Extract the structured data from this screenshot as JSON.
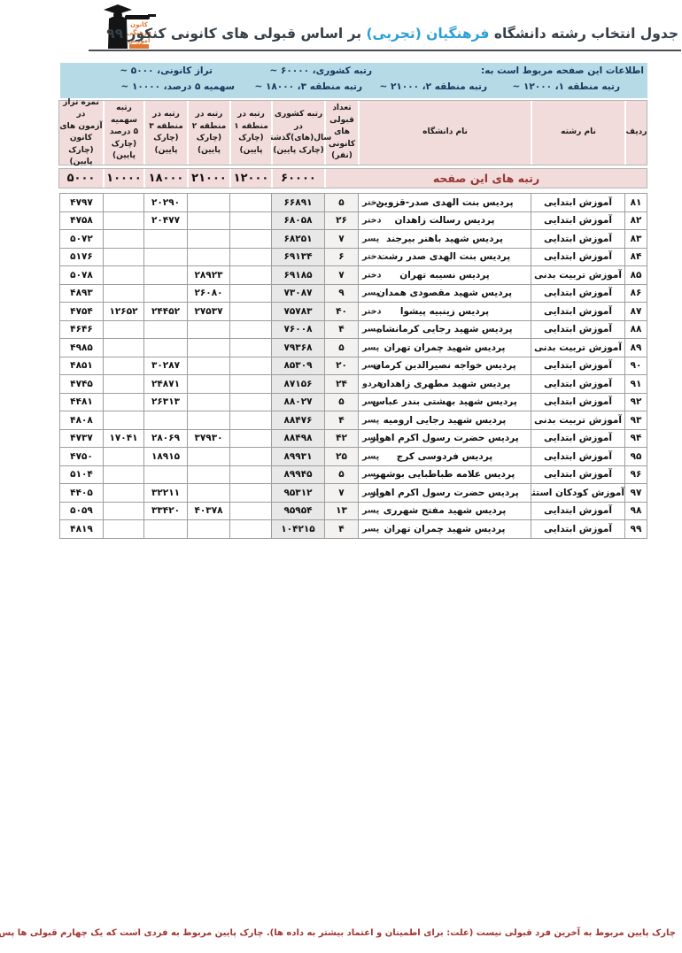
{
  "colors": {
    "highlight_blue": "#2b9fd6",
    "info_box_bg": "#b6dbe7",
    "info_text_navy": "#17365d",
    "header_pink": "#f2dcdb",
    "page_ranks_label_red": "#963634",
    "footnote_red": "#a03735",
    "logo_orange": "#e2762f",
    "national_rank_col_gray": "#e8e8e8"
  },
  "header": {
    "title_pre": "جدول انتخاب رشته دانشگاه ",
    "title_highlight": "فرهنگیان (تجربی)",
    "title_post": " بر اساس قبولی های کانونی کنکور ۹۹",
    "logo_lines": [
      "کانون",
      "فرهنگی",
      "آموزش"
    ]
  },
  "infobox": {
    "row1": [
      "اطلاعات این صفحه مربوط است به:",
      "رتبه کشوری، ۶۰۰۰۰ ~",
      "تراز کانونی، ۵۰۰۰ ~"
    ],
    "row2": [
      "رتبه منطقه ۱، ۱۲۰۰۰ ~",
      "رتبه منطقه ۲، ۲۱۰۰۰ ~",
      "رتبه منطقه ۳، ۱۸۰۰۰ ~",
      "سهمیه ۵ درصد، ۱۰۰۰۰ ~"
    ]
  },
  "table": {
    "columns": [
      {
        "id": "radif",
        "label": "ردیف"
      },
      {
        "id": "reshte",
        "label": "نام رشته"
      },
      {
        "id": "daneshgah",
        "label": "نام دانشگاه"
      },
      {
        "id": "tedad",
        "label": "تعداد قبولی\nهای کانونی\n(نفر)"
      },
      {
        "id": "keshvari",
        "label": "رتبه کشوری\nدر سال(های)گذشته\n(چارک پایین)"
      },
      {
        "id": "mantaghe1",
        "label": "رتبه در\nمنطقه ۱\n(چارک پایین)"
      },
      {
        "id": "mantaghe2",
        "label": "رتبه در\nمنطقه ۲\n(چارک پایین)"
      },
      {
        "id": "mantaghe3",
        "label": "رتبه در\nمنطقه ۳\n(چارک پایین)"
      },
      {
        "id": "sahmie",
        "label": "رتبه سهمیه\n۵ درصد\n(چارک پایین)"
      },
      {
        "id": "taraz",
        "label": "نمره تراز در\nآزمون های\nکانون\n(چارک پایین)"
      }
    ],
    "page_ranks_label": "رتبه های این صفحه",
    "page_ranks": {
      "keshvari": "۶۰۰۰۰",
      "mantaghe1": "۱۲۰۰۰",
      "mantaghe2": "۲۱۰۰۰",
      "mantaghe3": "۱۸۰۰۰",
      "sahmie": "۱۰۰۰۰",
      "taraz": "۵۰۰۰"
    },
    "rows": [
      {
        "radif": "۸۱",
        "reshte": "آموزش ابتدایی",
        "daneshgah": "پردیس بنت الهدی صدر-قزوین",
        "jens": "دختر",
        "tedad": "۵",
        "keshvari": "۶۶۸۹۱",
        "mantaghe1": "",
        "mantaghe2": "",
        "mantaghe3": "۲۰۲۹۰",
        "sahmie": "",
        "taraz": "۴۷۹۷"
      },
      {
        "radif": "۸۲",
        "reshte": "آموزش ابتدایی",
        "daneshgah": "پردیس رسالت زاهدان",
        "jens": "دختر",
        "tedad": "۲۶",
        "keshvari": "۶۸۰۵۸",
        "mantaghe1": "",
        "mantaghe2": "",
        "mantaghe3": "۲۰۴۷۷",
        "sahmie": "",
        "taraz": "۴۷۵۸"
      },
      {
        "radif": "۸۳",
        "reshte": "آموزش ابتدایی",
        "daneshgah": "پردیس شهید باهنر بیرجند",
        "jens": "پسر",
        "tedad": "۷",
        "keshvari": "۶۸۲۵۱",
        "mantaghe1": "",
        "mantaghe2": "",
        "mantaghe3": "",
        "sahmie": "",
        "taraz": "۵۰۷۲"
      },
      {
        "radif": "۸۴",
        "reshte": "آموزش ابتدایی",
        "daneshgah": "پردیس بنت الهدی صدر رشت",
        "jens": "دختر",
        "tedad": "۶",
        "keshvari": "۶۹۱۳۴",
        "mantaghe1": "",
        "mantaghe2": "",
        "mantaghe3": "",
        "sahmie": "",
        "taraz": "۵۱۷۶"
      },
      {
        "radif": "۸۵",
        "reshte": "آموزش تربیت بدنی",
        "daneshgah": "پردیس نسیبه تهران",
        "jens": "دختر",
        "tedad": "۷",
        "keshvari": "۶۹۱۸۵",
        "mantaghe1": "",
        "mantaghe2": "۲۸۹۲۳",
        "mantaghe3": "",
        "sahmie": "",
        "taraz": "۵۰۷۸"
      },
      {
        "radif": "۸۶",
        "reshte": "آموزش ابتدایی",
        "daneshgah": "پردیس شهید مقصودی همدان",
        "jens": "پسر",
        "tedad": "۹",
        "keshvari": "۷۳۰۸۷",
        "mantaghe1": "",
        "mantaghe2": "۲۶۰۸۰",
        "mantaghe3": "",
        "sahmie": "",
        "taraz": "۴۸۹۳"
      },
      {
        "radif": "۸۷",
        "reshte": "آموزش ابتدایی",
        "daneshgah": "پردیس زینبیه پیشوا",
        "jens": "دختر",
        "tedad": "۴۰",
        "keshvari": "۷۵۷۸۳",
        "mantaghe1": "",
        "mantaghe2": "۲۷۵۳۷",
        "mantaghe3": "۲۴۴۵۲",
        "sahmie": "۱۲۶۵۲",
        "taraz": "۴۷۵۴"
      },
      {
        "radif": "۸۸",
        "reshte": "آموزش ابتدایی",
        "daneshgah": "پردیس شهید رجایی کرمانشاه",
        "jens": "پسر",
        "tedad": "۴",
        "keshvari": "۷۶۰۰۸",
        "mantaghe1": "",
        "mantaghe2": "",
        "mantaghe3": "",
        "sahmie": "",
        "taraz": "۴۶۴۶"
      },
      {
        "radif": "۸۹",
        "reshte": "آموزش تربیت بدنی",
        "daneshgah": "پردیس شهید چمران تهران",
        "jens": "پسر",
        "tedad": "۵",
        "keshvari": "۷۹۳۶۸",
        "mantaghe1": "",
        "mantaghe2": "",
        "mantaghe3": "",
        "sahmie": "",
        "taraz": "۴۹۸۵"
      },
      {
        "radif": "۹۰",
        "reshte": "آموزش ابتدایی",
        "daneshgah": "پردیس خواجه نصیرالدین کرمان",
        "jens": "پسر",
        "tedad": "۲۰",
        "keshvari": "۸۵۳۰۹",
        "mantaghe1": "",
        "mantaghe2": "",
        "mantaghe3": "۳۰۲۸۷",
        "sahmie": "",
        "taraz": "۴۸۵۱"
      },
      {
        "radif": "۹۱",
        "reshte": "آموزش ابتدایی",
        "daneshgah": "پردیس شهید مطهری زاهدان",
        "jens": "هردو",
        "tedad": "۲۴",
        "keshvari": "۸۷۱۵۶",
        "mantaghe1": "",
        "mantaghe2": "",
        "mantaghe3": "۲۴۸۷۱",
        "sahmie": "",
        "taraz": "۴۷۴۵"
      },
      {
        "radif": "۹۲",
        "reshte": "آموزش ابتدایی",
        "daneshgah": "پردیس شهید بهشتی بندر عباس",
        "jens": "پسر",
        "tedad": "۵",
        "keshvari": "۸۸۰۲۷",
        "mantaghe1": "",
        "mantaghe2": "",
        "mantaghe3": "۲۶۳۱۳",
        "sahmie": "",
        "taraz": "۴۴۸۱"
      },
      {
        "radif": "۹۳",
        "reshte": "آموزش تربیت بدنی",
        "daneshgah": "پردیس شهید رجایی ارومیه",
        "jens": "پسر",
        "tedad": "۴",
        "keshvari": "۸۸۴۷۶",
        "mantaghe1": "",
        "mantaghe2": "",
        "mantaghe3": "",
        "sahmie": "",
        "taraz": "۴۸۰۸"
      },
      {
        "radif": "۹۴",
        "reshte": "آموزش ابتدایی",
        "daneshgah": "پردیس حضرت رسول اکرم اهواز",
        "jens": "پسر",
        "tedad": "۴۲",
        "keshvari": "۸۸۴۹۸",
        "mantaghe1": "",
        "mantaghe2": "۳۷۹۳۰",
        "mantaghe3": "۲۸۰۶۹",
        "sahmie": "۱۷۰۴۱",
        "taraz": "۴۷۳۷"
      },
      {
        "radif": "۹۵",
        "reshte": "آموزش ابتدایی",
        "daneshgah": "پردیس فردوسی کرج",
        "jens": "پسر",
        "tedad": "۲۵",
        "keshvari": "۸۹۹۳۱",
        "mantaghe1": "",
        "mantaghe2": "",
        "mantaghe3": "۱۸۹۱۵",
        "sahmie": "",
        "taraz": "۴۷۵۰"
      },
      {
        "radif": "۹۶",
        "reshte": "آموزش ابتدایی",
        "daneshgah": "پردیس علامه طباطبایی بوشهر",
        "jens": "پسر",
        "tedad": "۵",
        "keshvari": "۸۹۹۴۵",
        "mantaghe1": "",
        "mantaghe2": "",
        "mantaghe3": "",
        "sahmie": "",
        "taraz": "۵۱۰۴"
      },
      {
        "radif": "۹۷",
        "reshte": "آموزش کودکان استثنایی",
        "daneshgah": "پردیس حضرت رسول اکرم اهواز",
        "jens": "پسر",
        "tedad": "۷",
        "keshvari": "۹۵۳۱۲",
        "mantaghe1": "",
        "mantaghe2": "",
        "mantaghe3": "۳۲۲۱۱",
        "sahmie": "",
        "taraz": "۴۴۰۵"
      },
      {
        "radif": "۹۸",
        "reshte": "آموزش ابتدایی",
        "daneshgah": "پردیس شهید مفتح شهرری",
        "jens": "پسر",
        "tedad": "۱۳",
        "keshvari": "۹۵۹۵۴",
        "mantaghe1": "",
        "mantaghe2": "۴۰۳۷۸",
        "mantaghe3": "۳۳۴۲۰",
        "sahmie": "",
        "taraz": "۵۰۵۹"
      },
      {
        "radif": "۹۹",
        "reshte": "آموزش ابتدایی",
        "daneshgah": "پردیس شهید چمران تهران",
        "jens": "پسر",
        "tedad": "۴",
        "keshvari": "۱۰۴۲۱۵",
        "mantaghe1": "",
        "mantaghe2": "",
        "mantaghe3": "",
        "sahmie": "",
        "taraz": "۴۸۱۹"
      }
    ]
  },
  "footer": {
    "note": "چارک پایین مربوط به آخرین فرد قبولی نیست (علت: برای اطمینان و اعتماد بیشتر به داده ها). چارک پایین مربوط به فردی است که یک چهارم قبولی ها پس از او بوده اند و سه چهارم قبولی ها قبل از او ."
  }
}
